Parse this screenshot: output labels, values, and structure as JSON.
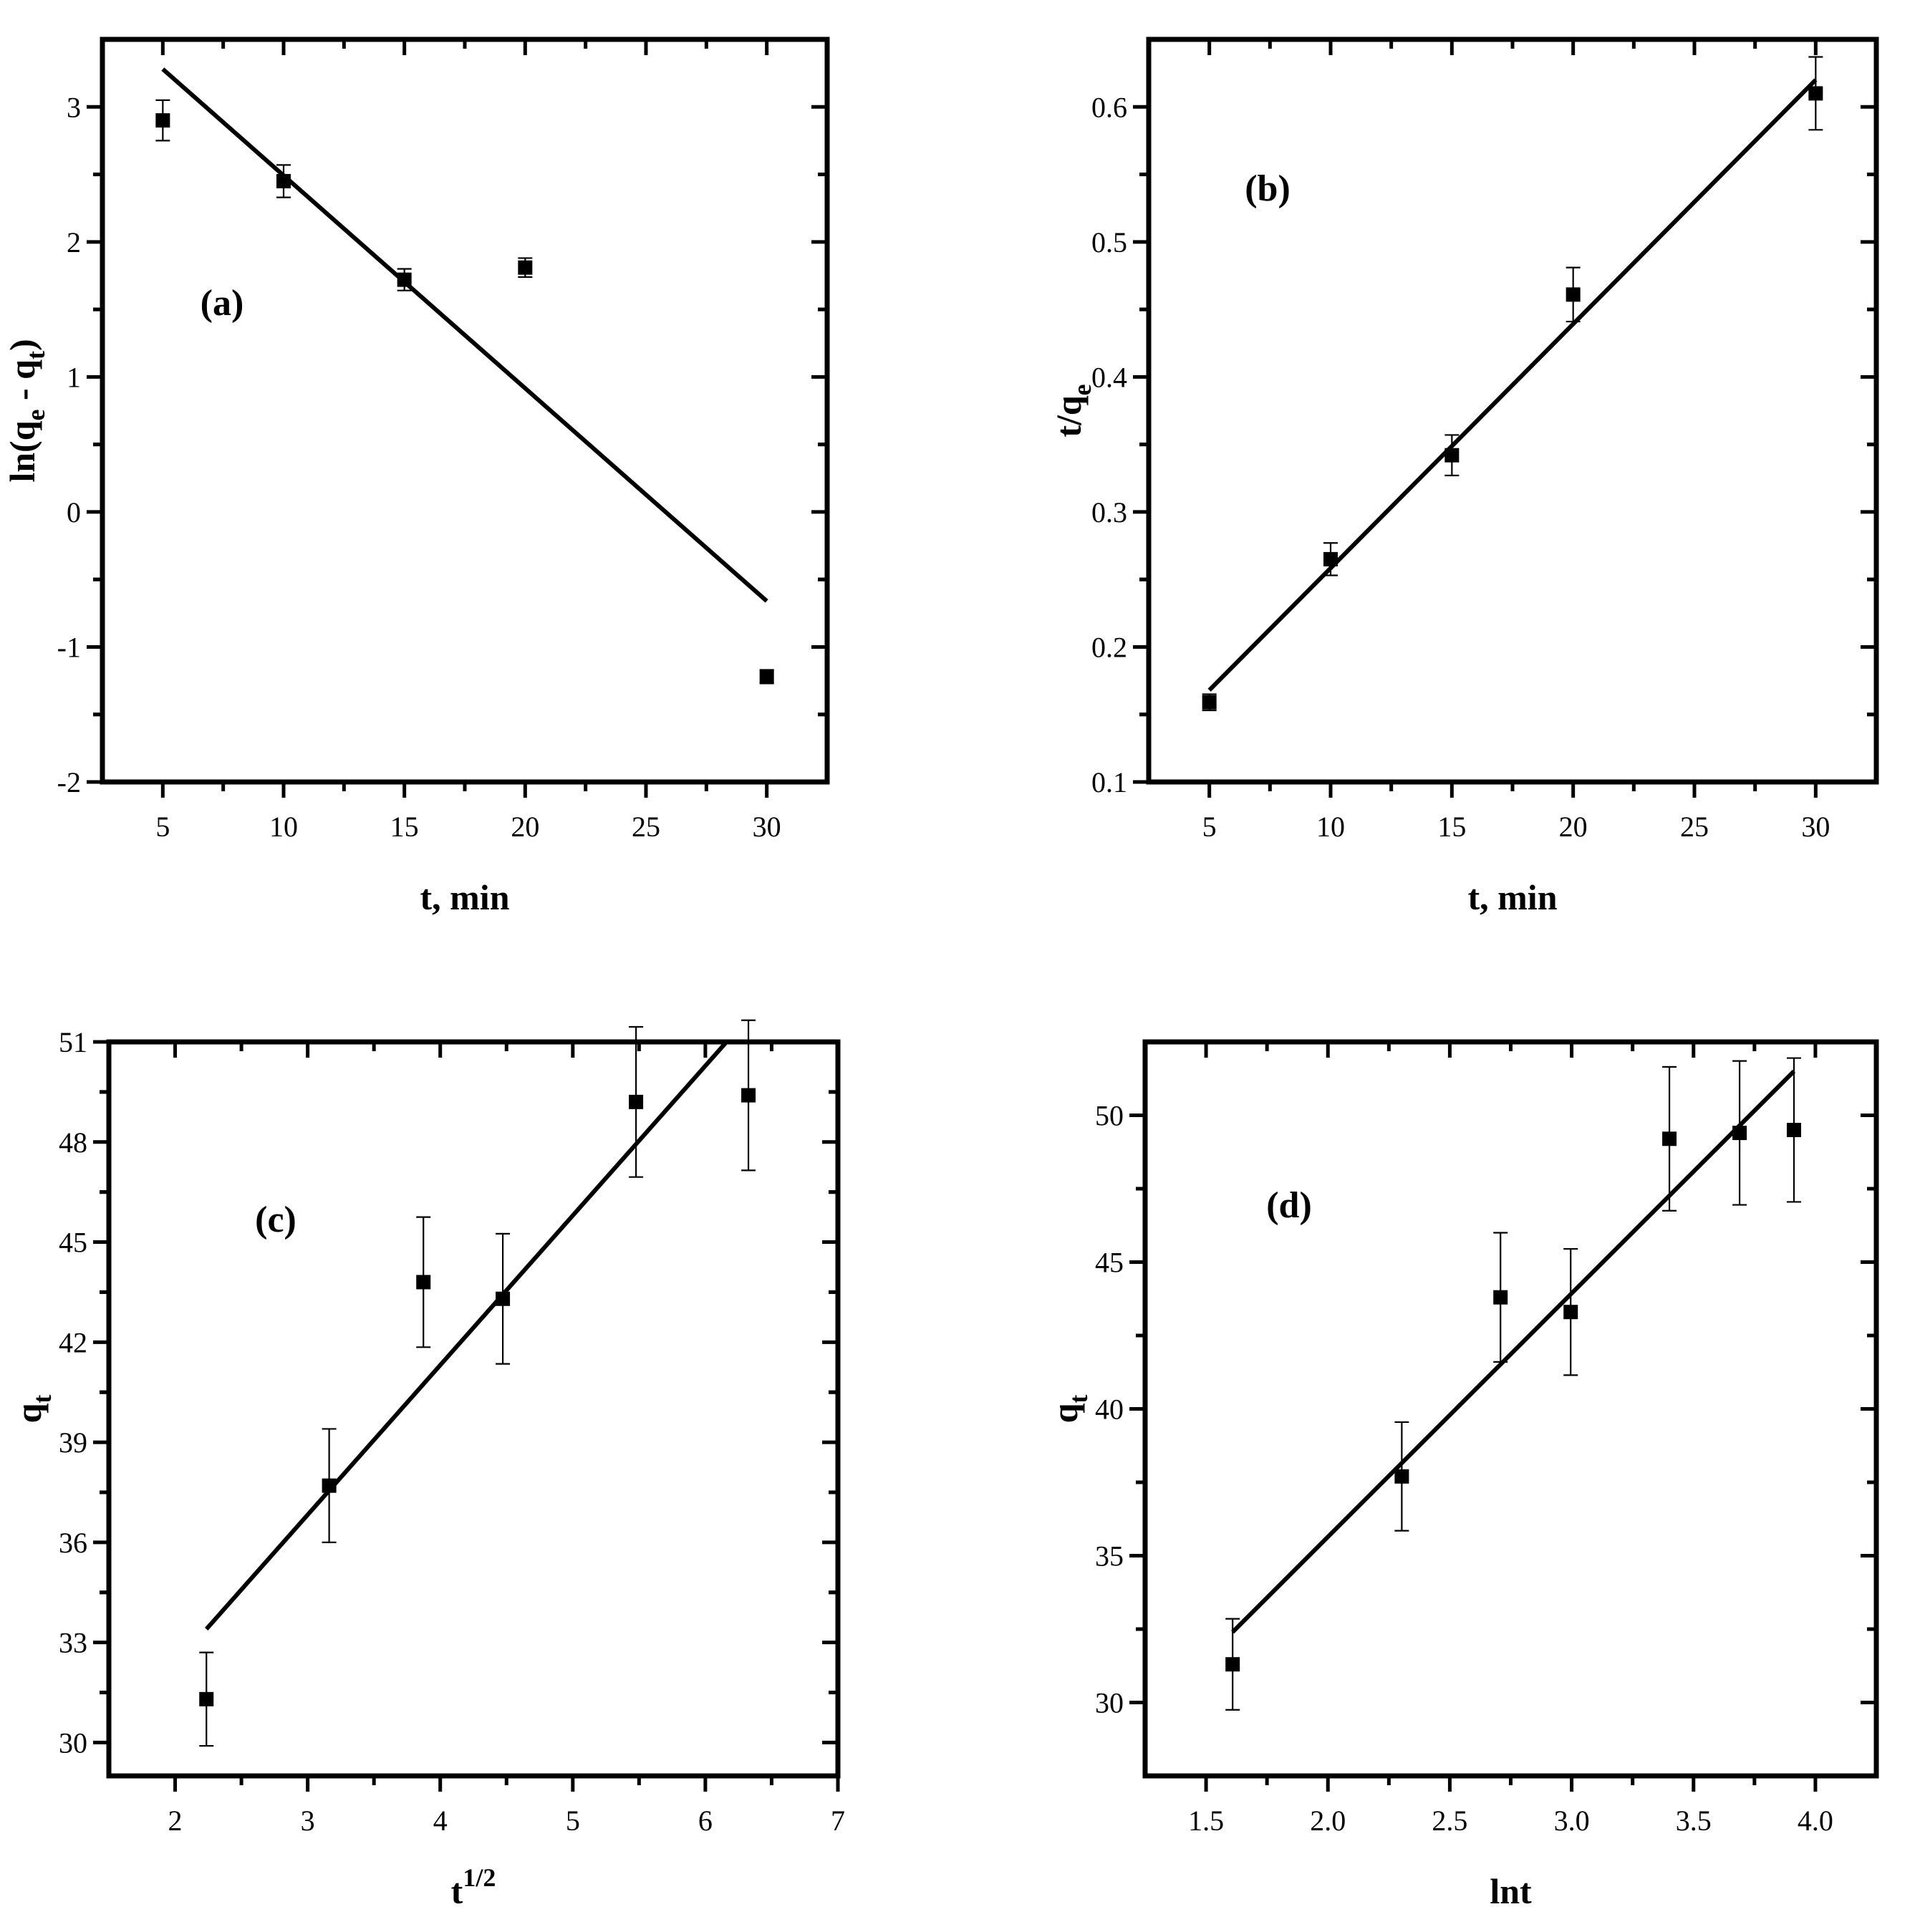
{
  "chart_data": [
    {
      "type": "scatter",
      "panel_label": "(a)",
      "xlabel": "t, min",
      "ylabel": {
        "main": "ln(q",
        "sub1": "e",
        "mid": " - q",
        "sub2": "t",
        "end": ")"
      },
      "xlim": [
        2.5,
        32.5
      ],
      "ylim": [
        -2,
        3.5
      ],
      "xticks": [
        5,
        10,
        15,
        20,
        25,
        30
      ],
      "yticks": [
        -2,
        -1,
        0,
        1,
        2,
        3
      ],
      "points": [
        {
          "x": 5,
          "y": 2.9,
          "err": 0.15
        },
        {
          "x": 10,
          "y": 2.45,
          "err": 0.12
        },
        {
          "x": 15,
          "y": 1.72,
          "err": 0.08
        },
        {
          "x": 20,
          "y": 1.81,
          "err": 0.07
        },
        {
          "x": 30,
          "y": -1.22,
          "err": 0.05
        }
      ],
      "fit": {
        "x": [
          5,
          30
        ],
        "y": [
          3.28,
          -0.66
        ]
      }
    },
    {
      "type": "scatter",
      "panel_label": "(b)",
      "xlabel": "t, min",
      "ylabel": {
        "main": "t/q",
        "sub1": "e"
      },
      "xlim": [
        2.5,
        32.5
      ],
      "ylim": [
        0.1,
        0.65
      ],
      "xticks": [
        5,
        10,
        15,
        20,
        25,
        30
      ],
      "yticks": [
        0.1,
        0.2,
        0.3,
        0.4,
        0.5,
        0.6
      ],
      "points": [
        {
          "x": 5,
          "y": 0.159,
          "err": 0.006
        },
        {
          "x": 10,
          "y": 0.265,
          "err": 0.012
        },
        {
          "x": 15,
          "y": 0.342,
          "err": 0.015
        },
        {
          "x": 20,
          "y": 0.461,
          "err": 0.02
        },
        {
          "x": 30,
          "y": 0.61,
          "err": 0.027
        }
      ],
      "fit": {
        "x": [
          5,
          30
        ],
        "y": [
          0.168,
          0.62
        ]
      }
    },
    {
      "type": "scatter",
      "panel_label": "(c)",
      "xlabel": {
        "main": "t",
        "sup": "1/2"
      },
      "ylabel": {
        "main": "q",
        "sub1": "t"
      },
      "xlim": [
        1.5,
        7
      ],
      "ylim": [
        29,
        51
      ],
      "xticks": [
        2,
        3,
        4,
        5,
        6,
        7
      ],
      "yticks": [
        30,
        33,
        36,
        39,
        42,
        45,
        48,
        51
      ],
      "points": [
        {
          "x": 2.236,
          "y": 31.3,
          "err": 1.4
        },
        {
          "x": 3.162,
          "y": 37.7,
          "err": 1.7
        },
        {
          "x": 3.873,
          "y": 43.8,
          "err": 1.95
        },
        {
          "x": 4.472,
          "y": 43.3,
          "err": 1.95
        },
        {
          "x": 5.477,
          "y": 49.2,
          "err": 2.25
        },
        {
          "x": 6.325,
          "y": 49.4,
          "err": 2.25
        }
      ],
      "fit": {
        "x": [
          2.236,
          6.16
        ],
        "y": [
          33.4,
          51.0
        ]
      }
    },
    {
      "type": "scatter",
      "panel_label": "(d)",
      "xlabel": "lnt",
      "ylabel": {
        "main": "q",
        "sub1": "t"
      },
      "xlim": [
        1.25,
        4.25
      ],
      "ylim": [
        27.5,
        52.5
      ],
      "xticks": [
        1.5,
        2.0,
        2.5,
        3.0,
        3.5,
        4.0
      ],
      "yticks": [
        30,
        35,
        40,
        45,
        50
      ],
      "points": [
        {
          "x": 1.609,
          "y": 31.3,
          "err": 1.55
        },
        {
          "x": 2.303,
          "y": 37.7,
          "err": 1.85
        },
        {
          "x": 2.708,
          "y": 43.8,
          "err": 2.2
        },
        {
          "x": 2.996,
          "y": 43.3,
          "err": 2.15
        },
        {
          "x": 3.401,
          "y": 49.2,
          "err": 2.45
        },
        {
          "x": 3.689,
          "y": 49.4,
          "err": 2.45
        },
        {
          "x": 3.912,
          "y": 49.5,
          "err": 2.45
        }
      ],
      "fit": {
        "x": [
          1.609,
          3.912
        ],
        "y": [
          32.4,
          51.5
        ]
      }
    }
  ]
}
